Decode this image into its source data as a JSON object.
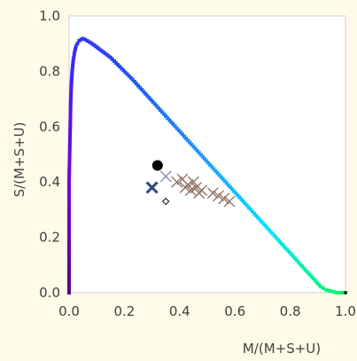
{
  "chart_data": {
    "type": "scatter",
    "xlabel": "M/(M+S+U)",
    "ylabel": "S/(M+S+U)",
    "xlim": [
      0,
      1
    ],
    "ylim": [
      0,
      1
    ],
    "x_ticks": [
      "0.0",
      "0.2",
      "0.4",
      "0.6",
      "0.8",
      "1.0"
    ],
    "y_ticks": [
      "0.0",
      "0.2",
      "0.4",
      "0.6",
      "0.8",
      "1.0"
    ],
    "grid": false,
    "series": [
      {
        "marker": "square",
        "x": [
          0.0,
          0.0,
          0.0,
          0.0,
          0.0,
          0.0,
          0.0,
          0.0,
          0.0,
          0.001,
          0.002,
          0.003,
          0.004,
          0.005,
          0.006,
          0.008,
          0.011,
          0.015,
          0.02,
          0.025,
          0.03,
          0.036,
          0.043,
          0.05,
          0.058,
          0.066,
          0.075,
          0.09,
          0.11,
          0.13,
          0.15,
          0.17,
          0.19,
          0.21,
          0.23,
          0.25,
          0.27,
          0.29,
          0.31,
          0.33,
          0.35,
          0.37,
          0.39,
          0.41,
          0.43,
          0.45,
          0.47,
          0.49,
          0.51,
          0.53,
          0.55,
          0.57,
          0.59,
          0.61,
          0.63,
          0.65,
          0.67,
          0.69,
          0.71,
          0.73,
          0.75,
          0.77,
          0.79,
          0.81,
          0.83,
          0.85,
          0.87,
          0.89,
          0.91,
          0.93,
          0.95,
          0.97,
          0.99,
          1.0
        ],
        "y": [
          0.0,
          0.05,
          0.1,
          0.15,
          0.2,
          0.25,
          0.3,
          0.35,
          0.4,
          0.45,
          0.5,
          0.55,
          0.6,
          0.65,
          0.7,
          0.75,
          0.8,
          0.84,
          0.87,
          0.89,
          0.9,
          0.91,
          0.915,
          0.918,
          0.915,
          0.91,
          0.905,
          0.895,
          0.88,
          0.865,
          0.85,
          0.83,
          0.81,
          0.79,
          0.77,
          0.748,
          0.726,
          0.704,
          0.682,
          0.66,
          0.638,
          0.616,
          0.594,
          0.572,
          0.55,
          0.528,
          0.506,
          0.484,
          0.462,
          0.44,
          0.418,
          0.396,
          0.374,
          0.352,
          0.33,
          0.308,
          0.286,
          0.264,
          0.242,
          0.22,
          0.198,
          0.176,
          0.154,
          0.132,
          0.11,
          0.088,
          0.066,
          0.044,
          0.022,
          0.01,
          0.005,
          0.0,
          0.0,
          0.0
        ]
      },
      {
        "marker": "x-thin",
        "color": "#8c6b5a",
        "x": [
          0.39,
          0.41,
          0.42,
          0.43,
          0.44,
          0.45,
          0.46,
          0.47,
          0.48,
          0.52,
          0.54,
          0.56,
          0.58
        ],
        "y": [
          0.4,
          0.41,
          0.38,
          0.39,
          0.37,
          0.4,
          0.38,
          0.36,
          0.37,
          0.36,
          0.35,
          0.34,
          0.33
        ]
      },
      {
        "marker": "x-thin",
        "color": "#7a84b8",
        "x": [
          0.35
        ],
        "y": [
          0.42
        ]
      },
      {
        "marker": "x-bold",
        "color": "#2f4a7a",
        "x": [
          0.3
        ],
        "y": [
          0.38
        ]
      },
      {
        "marker": "circle",
        "color": "#000000",
        "x": [
          0.32
        ],
        "y": [
          0.46
        ]
      },
      {
        "marker": "diamond-open",
        "color": "#303030",
        "x": [
          0.35
        ],
        "y": [
          0.33
        ]
      }
    ]
  },
  "colors": {
    "background": "#fffbe8",
    "plot_background": "#ffffff",
    "frame": "#d0d0d0",
    "axis_text": "#404040",
    "locus_gradient": [
      "#5a0080",
      "#7a00d8",
      "#4020ff",
      "#1e4cf0",
      "#1e90ff",
      "#00e0ff",
      "#00ff60"
    ]
  }
}
